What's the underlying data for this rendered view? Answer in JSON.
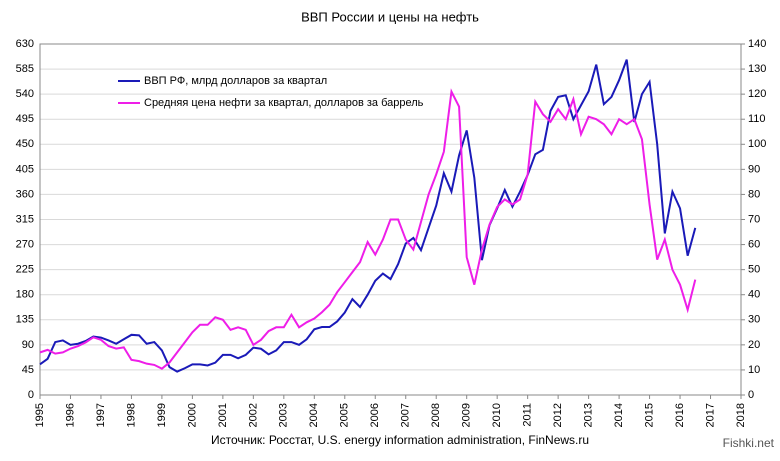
{
  "chart_data": {
    "type": "line",
    "title": "ВВП России и цены на нефть",
    "source": "Источник: Росстат, U.S. energy information administration, FinNews.ru",
    "watermark": "Fishki.net",
    "x": [
      1995,
      1995.25,
      1995.5,
      1995.75,
      1996,
      1996.25,
      1996.5,
      1996.75,
      1997,
      1997.25,
      1997.5,
      1997.75,
      1998,
      1998.25,
      1998.5,
      1998.75,
      1999,
      1999.25,
      1999.5,
      1999.75,
      2000,
      2000.25,
      2000.5,
      2000.75,
      2001,
      2001.25,
      2001.5,
      2001.75,
      2002,
      2002.25,
      2002.5,
      2002.75,
      2003,
      2003.25,
      2003.5,
      2003.75,
      2004,
      2004.25,
      2004.5,
      2004.75,
      2005,
      2005.25,
      2005.5,
      2005.75,
      2006,
      2006.25,
      2006.5,
      2006.75,
      2007,
      2007.25,
      2007.5,
      2007.75,
      2008,
      2008.25,
      2008.5,
      2008.75,
      2009,
      2009.25,
      2009.5,
      2009.75,
      2010,
      2010.25,
      2010.5,
      2010.75,
      2011,
      2011.25,
      2011.5,
      2011.75,
      2012,
      2012.25,
      2012.5,
      2012.75,
      2013,
      2013.25,
      2013.5,
      2013.75,
      2014,
      2014.25,
      2014.5,
      2014.75,
      2015,
      2015.25,
      2015.5,
      2015.75,
      2016,
      2016.25,
      2016.5
    ],
    "series": [
      {
        "name": "ВВП РФ, млрд долларов за квартал",
        "color": "#1a1ab8",
        "axis": "y",
        "values": [
          55,
          65,
          95,
          98,
          90,
          92,
          97,
          105,
          103,
          98,
          92,
          100,
          108,
          107,
          92,
          95,
          80,
          50,
          42,
          48,
          55,
          55,
          53,
          58,
          72,
          72,
          66,
          72,
          85,
          83,
          73,
          80,
          95,
          95,
          90,
          100,
          118,
          122,
          122,
          132,
          148,
          172,
          158,
          180,
          205,
          218,
          208,
          235,
          272,
          282,
          260,
          300,
          340,
          398,
          365,
          430,
          475,
          390,
          242,
          305,
          335,
          368,
          338,
          365,
          395,
          432,
          440,
          510,
          535,
          538,
          495,
          520,
          545,
          593,
          522,
          535,
          565,
          602,
          490,
          540,
          562,
          450,
          290,
          365,
          335,
          250,
          300
        ]
      },
      {
        "name": "Средняя цена нефти за квартал, долларов за баррель",
        "color": "#ee1ee8",
        "axis": "y2",
        "values": [
          17,
          18,
          16.5,
          17,
          18.5,
          19.5,
          21,
          23,
          22,
          19.5,
          18.5,
          19,
          14,
          13.5,
          12.5,
          12,
          10.5,
          13,
          17,
          21,
          25,
          28,
          28,
          31,
          30,
          26,
          27,
          26,
          20,
          22,
          25.5,
          27,
          27,
          32,
          27,
          29,
          30.5,
          33,
          36,
          41,
          45,
          49,
          53,
          61,
          56,
          62,
          70,
          70,
          62,
          58,
          69,
          80,
          88,
          97,
          121,
          115,
          55,
          44,
          58,
          68,
          75,
          78,
          76,
          78,
          88,
          117,
          112,
          109,
          114,
          110,
          118,
          104,
          111,
          110,
          108,
          104,
          110,
          108,
          110,
          102,
          76,
          54,
          62,
          50,
          44,
          34,
          46
        ]
      }
    ],
    "xlim": [
      1995,
      2018
    ],
    "xticks": [
      1995,
      1996,
      1997,
      1998,
      1999,
      2000,
      2001,
      2002,
      2003,
      2004,
      2005,
      2006,
      2007,
      2008,
      2009,
      2010,
      2011,
      2012,
      2013,
      2014,
      2015,
      2016,
      2017,
      2018
    ],
    "ylim": [
      0,
      630
    ],
    "yticks": [
      0,
      45,
      90,
      135,
      180,
      225,
      270,
      315,
      360,
      405,
      450,
      495,
      540,
      585,
      630
    ],
    "y2lim": [
      0,
      140
    ],
    "y2ticks": [
      0,
      10,
      20,
      30,
      40,
      50,
      60,
      70,
      80,
      90,
      100,
      110,
      120,
      130,
      140
    ],
    "grid": true,
    "legend": "upper left"
  }
}
